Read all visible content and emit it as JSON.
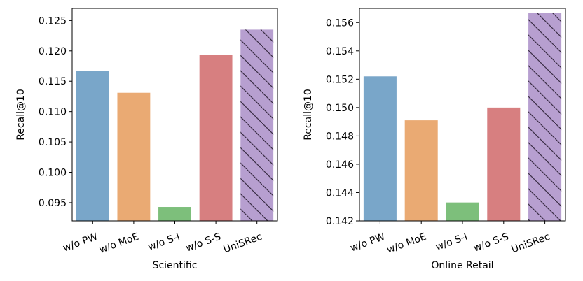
{
  "chart_data": [
    {
      "type": "bar",
      "title": "",
      "xlabel": "Scientific",
      "ylabel": "Recall@10",
      "categories": [
        "w/o PW",
        "w/o MoE",
        "w/o S-I",
        "w/o S-S",
        "UniSRec"
      ],
      "values": [
        0.1167,
        0.1131,
        0.0943,
        0.1193,
        0.1235
      ],
      "ylim": [
        0.092,
        0.127
      ],
      "yticks": [
        0.095,
        0.1,
        0.105,
        0.11,
        0.115,
        0.12,
        0.125
      ],
      "ytick_labels": [
        "0.095",
        "0.100",
        "0.105",
        "0.110",
        "0.115",
        "0.120",
        "0.125"
      ],
      "colors": [
        "#79a6c9",
        "#eaaa73",
        "#7dbf7b",
        "#d77f80",
        "#b79fd0"
      ],
      "hatched": [
        false,
        false,
        false,
        false,
        true
      ]
    },
    {
      "type": "bar",
      "title": "",
      "xlabel": "Online Retail",
      "ylabel": "Recall@10",
      "categories": [
        "w/o PW",
        "w/o MoE",
        "w/o S-I",
        "w/o S-S",
        "UniSRec"
      ],
      "values": [
        0.1522,
        0.1491,
        0.1433,
        0.15,
        0.1567
      ],
      "ylim": [
        0.142,
        0.157
      ],
      "yticks": [
        0.142,
        0.144,
        0.146,
        0.148,
        0.15,
        0.152,
        0.154,
        0.156
      ],
      "ytick_labels": [
        "0.142",
        "0.144",
        "0.146",
        "0.148",
        "0.150",
        "0.152",
        "0.154",
        "0.156"
      ],
      "colors": [
        "#79a6c9",
        "#eaaa73",
        "#7dbf7b",
        "#d77f80",
        "#b79fd0"
      ],
      "hatched": [
        false,
        false,
        false,
        false,
        true
      ]
    }
  ]
}
